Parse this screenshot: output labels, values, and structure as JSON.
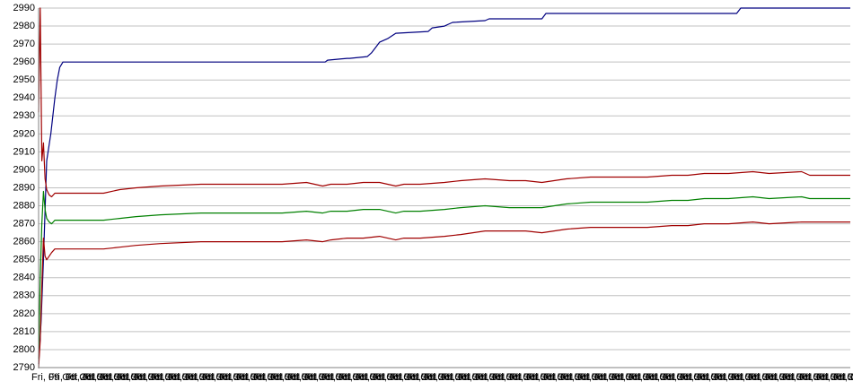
{
  "chart_data": {
    "type": "line",
    "title": "",
    "xlabel": "",
    "ylabel": "",
    "ylim": [
      2790,
      2990
    ],
    "yticks": [
      2790,
      2800,
      2810,
      2820,
      2830,
      2840,
      2850,
      2860,
      2870,
      2880,
      2890,
      2900,
      2910,
      2920,
      2930,
      2940,
      2950,
      2960,
      2970,
      2980,
      2990
    ],
    "grid": true,
    "legend": "none",
    "xlim": [
      0,
      100
    ],
    "x_tick_labels_overlapping": "Fri, 09 Oct 2015 ... (dense overlapping date labels)",
    "series": [
      {
        "color": "#000080",
        "x": [
          0,
          0.3,
          0.6,
          1,
          1.5,
          2,
          2.3,
          2.6,
          3,
          35.3,
          35.6,
          38,
          38.3,
          40.5,
          41,
          41.5,
          42,
          43,
          44,
          48,
          48.5,
          50,
          50.5,
          51,
          55,
          55.5,
          62,
          62.5,
          86,
          86.5,
          100
        ],
        "y": [
          2792,
          2815,
          2850,
          2905,
          2920,
          2940,
          2950,
          2957,
          2960,
          2960,
          2961,
          2962,
          2962,
          2963,
          2965,
          2968,
          2971,
          2973,
          2976,
          2977,
          2979,
          2980,
          2981,
          2982,
          2983,
          2984,
          2984,
          2987,
          2987,
          2990,
          2990
        ]
      },
      {
        "color": "#a00000",
        "x": [
          0,
          0.2,
          0.4,
          0.6,
          0.8,
          1,
          1.3,
          1.6,
          2,
          2.5,
          3,
          5,
          8,
          10,
          12,
          15,
          20,
          25,
          30,
          33,
          35,
          36,
          38,
          40,
          42,
          43,
          44,
          45,
          47,
          50,
          52,
          55,
          58,
          60,
          62,
          65,
          68,
          70,
          72,
          75,
          78,
          80,
          82,
          85,
          88,
          90,
          94,
          95,
          97,
          100
        ],
        "y": [
          2932,
          2990,
          2905,
          2915,
          2895,
          2889,
          2886,
          2885,
          2887,
          2887,
          2887,
          2887,
          2887,
          2889,
          2890,
          2891,
          2892,
          2892,
          2892,
          2893,
          2891,
          2892,
          2892,
          2893,
          2893,
          2892,
          2891,
          2892,
          2892,
          2893,
          2894,
          2895,
          2894,
          2894,
          2893,
          2895,
          2896,
          2896,
          2896,
          2896,
          2897,
          2897,
          2898,
          2898,
          2899,
          2898,
          2899,
          2897,
          2897,
          2897
        ]
      },
      {
        "color": "#008000",
        "x": [
          0,
          0.2,
          0.4,
          0.6,
          0.8,
          1,
          1.3,
          1.6,
          2,
          2.5,
          3,
          5,
          8,
          10,
          12,
          15,
          20,
          25,
          30,
          33,
          35,
          36,
          38,
          40,
          42,
          43,
          44,
          45,
          47,
          50,
          52,
          55,
          58,
          60,
          62,
          65,
          68,
          70,
          72,
          75,
          78,
          80,
          82,
          85,
          88,
          90,
          94,
          95,
          97,
          100
        ],
        "y": [
          2795,
          2840,
          2870,
          2888,
          2878,
          2873,
          2871,
          2870,
          2872,
          2872,
          2872,
          2872,
          2872,
          2873,
          2874,
          2875,
          2876,
          2876,
          2876,
          2877,
          2876,
          2877,
          2877,
          2878,
          2878,
          2877,
          2876,
          2877,
          2877,
          2878,
          2879,
          2880,
          2879,
          2879,
          2879,
          2881,
          2882,
          2882,
          2882,
          2882,
          2883,
          2883,
          2884,
          2884,
          2885,
          2884,
          2885,
          2884,
          2884,
          2884
        ]
      },
      {
        "color": "#a00000",
        "x": [
          0,
          0.2,
          0.4,
          0.6,
          0.8,
          1,
          1.3,
          1.6,
          2,
          2.5,
          3,
          5,
          8,
          10,
          12,
          15,
          20,
          25,
          30,
          33,
          35,
          36,
          38,
          40,
          42,
          43,
          44,
          45,
          47,
          50,
          52,
          55,
          58,
          60,
          62,
          65,
          68,
          70,
          72,
          75,
          78,
          80,
          82,
          85,
          88,
          90,
          94,
          95,
          97,
          100
        ],
        "y": [
          2790,
          2805,
          2835,
          2862,
          2852,
          2850,
          2852,
          2854,
          2856,
          2856,
          2856,
          2856,
          2856,
          2857,
          2858,
          2859,
          2860,
          2860,
          2860,
          2861,
          2860,
          2861,
          2862,
          2862,
          2863,
          2862,
          2861,
          2862,
          2862,
          2863,
          2864,
          2866,
          2866,
          2866,
          2865,
          2867,
          2868,
          2868,
          2868,
          2868,
          2869,
          2869,
          2870,
          2870,
          2871,
          2870,
          2871,
          2871,
          2871,
          2871
        ]
      }
    ]
  }
}
